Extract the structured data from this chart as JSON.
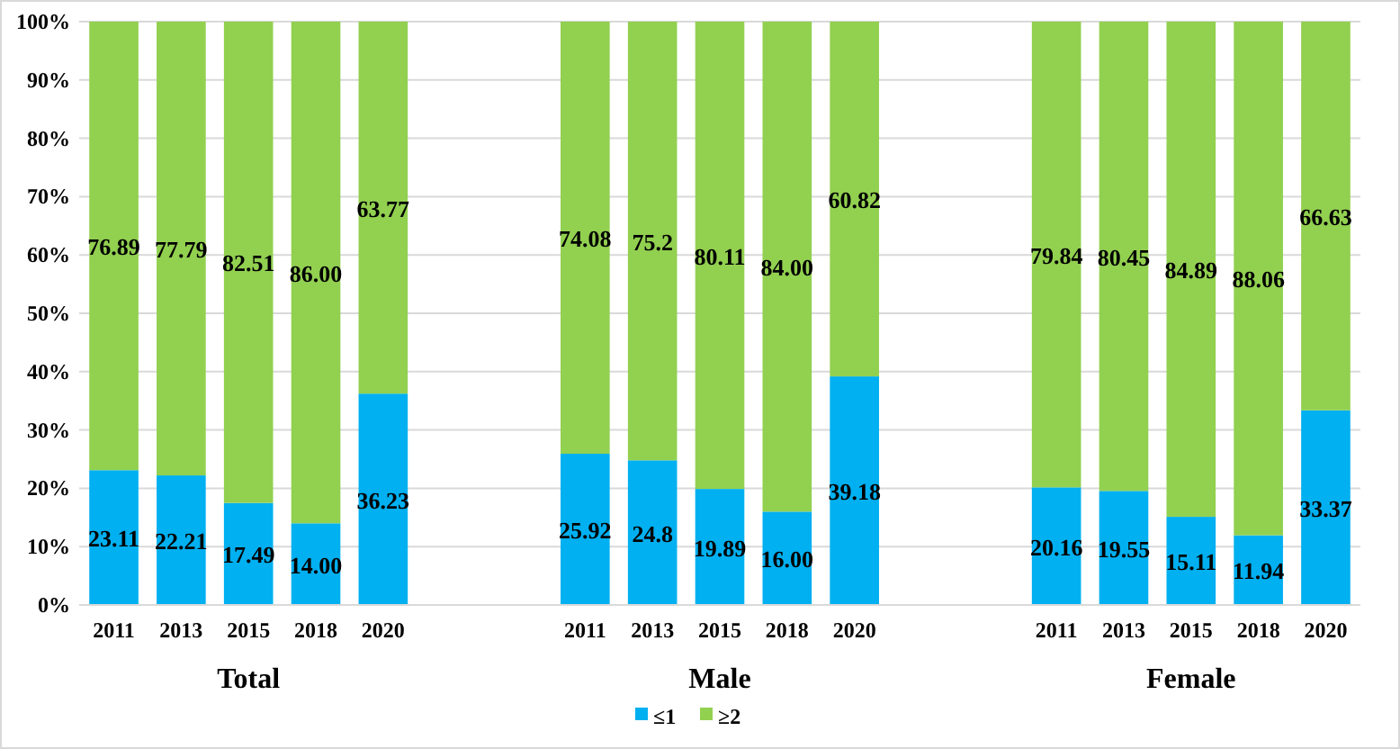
{
  "chart_data": {
    "type": "bar",
    "stacked": true,
    "categories": [
      "2011",
      "2013",
      "2015",
      "2018",
      "2020",
      null,
      null,
      "2011",
      "2013",
      "2015",
      "2018",
      "2020",
      null,
      null,
      "2011",
      "2013",
      "2015",
      "2018",
      "2020"
    ],
    "series": [
      {
        "name": "≤1",
        "color": "#00b0f0",
        "values": [
          23.11,
          22.21,
          17.49,
          14.0,
          36.23,
          null,
          null,
          25.92,
          24.8,
          19.89,
          16.0,
          39.18,
          null,
          null,
          20.16,
          19.55,
          15.11,
          11.94,
          33.37
        ],
        "value_labels": [
          "23.11",
          "22.21",
          "17.49",
          "14.00",
          "36.23",
          null,
          null,
          "25.92",
          "24.8",
          "19.89",
          "16.00",
          "39.18",
          null,
          null,
          "20.16",
          "19.55",
          "15.11",
          "11.94",
          "33.37"
        ]
      },
      {
        "name": "≥2",
        "color": "#92d050",
        "values": [
          76.89,
          77.79,
          82.51,
          86.0,
          63.77,
          null,
          null,
          74.08,
          75.2,
          80.11,
          84.0,
          60.82,
          null,
          null,
          79.84,
          80.45,
          84.89,
          88.06,
          66.63
        ],
        "value_labels": [
          "76.89",
          "77.79",
          "82.51",
          "86.00",
          "63.77",
          null,
          null,
          "74.08",
          "75.2",
          "80.11",
          "84.00",
          "60.82",
          null,
          null,
          "79.84",
          "80.45",
          "84.89",
          "88.06",
          "66.63"
        ]
      }
    ],
    "ylim": [
      0,
      100
    ],
    "yticks": [
      {
        "value": 0,
        "label": "0%"
      },
      {
        "value": 10,
        "label": "10%"
      },
      {
        "value": 20,
        "label": "20%"
      },
      {
        "value": 30,
        "label": "30%"
      },
      {
        "value": 40,
        "label": "40%"
      },
      {
        "value": 50,
        "label": "50%"
      },
      {
        "value": 60,
        "label": "60%"
      },
      {
        "value": 70,
        "label": "70%"
      },
      {
        "value": 80,
        "label": "80%"
      },
      {
        "value": 90,
        "label": "90%"
      },
      {
        "value": 100,
        "label": "100%"
      }
    ],
    "grid": "y",
    "legend": "bottom",
    "annotations": [
      "Total",
      "Male",
      "Female"
    ]
  }
}
